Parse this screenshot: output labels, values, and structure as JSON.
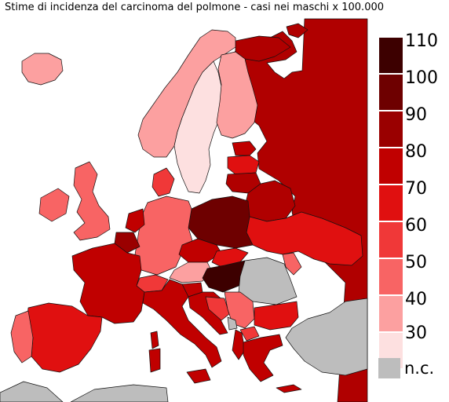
{
  "title": "Stime di incidenza del carcinoma del polmone - casi nei maschi x 100.000",
  "legend": {
    "bins": [
      {
        "label": "110",
        "color": "#3d0000"
      },
      {
        "label": "100",
        "color": "#6e0000"
      },
      {
        "label": "90",
        "color": "#9a0000"
      },
      {
        "label": "80",
        "color": "#c00000"
      },
      {
        "label": "70",
        "color": "#e01010"
      },
      {
        "label": "60",
        "color": "#f03838"
      },
      {
        "label": "50",
        "color": "#f86464"
      },
      {
        "label": "40",
        "color": "#fca0a0"
      },
      {
        "label": "30",
        "color": "#fde0e0"
      }
    ],
    "no_data": {
      "label": "n.c.",
      "color": "#bdbdbd"
    }
  },
  "colors": {
    "water": "#ffffff",
    "border": "#111111"
  }
}
